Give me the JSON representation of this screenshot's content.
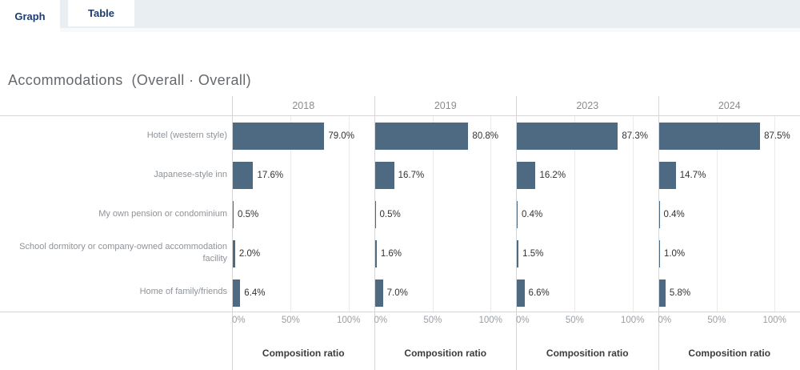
{
  "tabs": [
    {
      "label": "Graph",
      "active": true
    },
    {
      "label": "Table",
      "active": false
    }
  ],
  "title": "Accommodations  (Overall · Overall)",
  "chart_data": {
    "type": "bar",
    "orientation": "horizontal",
    "title": "Accommodations  (Overall · Overall)",
    "categories": [
      "Hotel (western style)",
      "Japanese-style inn",
      "My own pension or condominium",
      "School dormitory or company-owned accommodation facility",
      "Home of family/friends"
    ],
    "series": [
      {
        "name": "2018",
        "values": [
          79.0,
          17.6,
          0.5,
          2.0,
          6.4
        ]
      },
      {
        "name": "2019",
        "values": [
          80.8,
          16.7,
          0.5,
          1.6,
          7.0
        ]
      },
      {
        "name": "2023",
        "values": [
          87.3,
          16.2,
          0.4,
          1.5,
          6.6
        ]
      },
      {
        "name": "2024",
        "values": [
          87.5,
          14.7,
          0.4,
          1.0,
          5.8
        ]
      }
    ],
    "value_suffix": "%",
    "value_decimals": 1,
    "xlabel": "Composition ratio",
    "xlim": [
      0,
      100
    ],
    "x_ticks": [
      {
        "label": "0%",
        "pos": 0
      },
      {
        "label": "50%",
        "pos": 50
      },
      {
        "label": "100%",
        "pos": 100
      }
    ],
    "gridlines_pos": [
      50,
      100
    ],
    "legend": "none",
    "bar_color": "#4e6a82"
  },
  "colors": {
    "bar": "#4e6a82",
    "tab_text": "#1c3d6e",
    "tab_bg": "#e9eef3"
  }
}
